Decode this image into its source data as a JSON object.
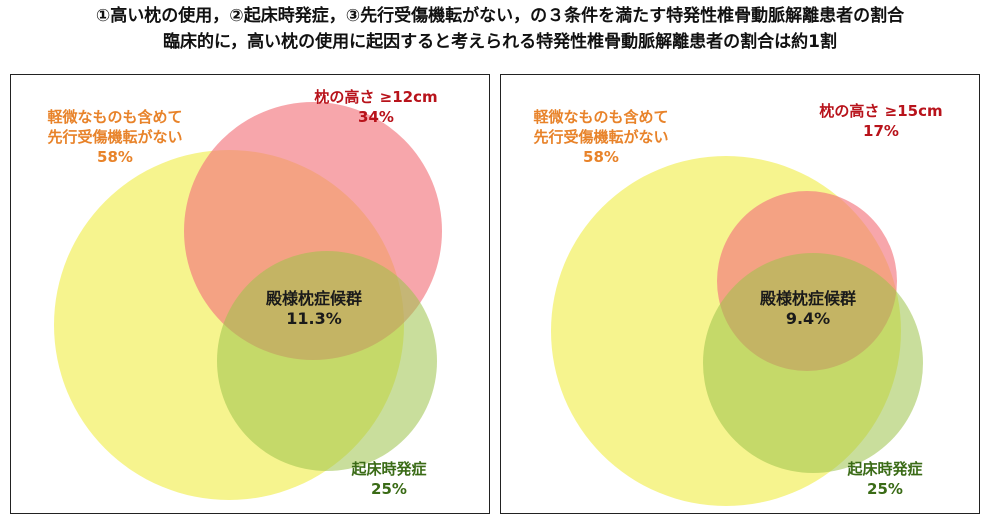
{
  "header": {
    "line1": "①高い枕の使用，②起床時発症，③先行受傷機転がない，の３条件を満たす特発性椎骨動脈解離患者の割合",
    "line2": "臨床的に，高い枕の使用に起因すると考えられる特発性椎骨動脈解離患者の割合は約1割"
  },
  "colors": {
    "circle_yellow": "#f4f27a",
    "circle_red": "#f6a2a6",
    "circle_green": "#c8dc97",
    "label_orange": "#e8832a",
    "label_red": "#b8131b",
    "label_green": "#3a6b16"
  },
  "panels": [
    {
      "trauma": {
        "line1": "軽微なものも含めて",
        "line2": "先行受傷機転がない",
        "value": "58%"
      },
      "pillow": {
        "line1": "枕の高さ ≥12cm",
        "value": "34%"
      },
      "center": {
        "line1": "殿様枕症候群",
        "value": "11.3%"
      },
      "wake": {
        "line1": "起床時発症",
        "value": "25%"
      }
    },
    {
      "trauma": {
        "line1": "軽微なものも含めて",
        "line2": "先行受傷機転がない",
        "value": "58%"
      },
      "pillow": {
        "line1": "枕の高さ ≥15cm",
        "value": "17%"
      },
      "center": {
        "line1": "殿様枕症候群",
        "value": "9.4%"
      },
      "wake": {
        "line1": "起床時発症",
        "value": "25%"
      }
    }
  ]
}
